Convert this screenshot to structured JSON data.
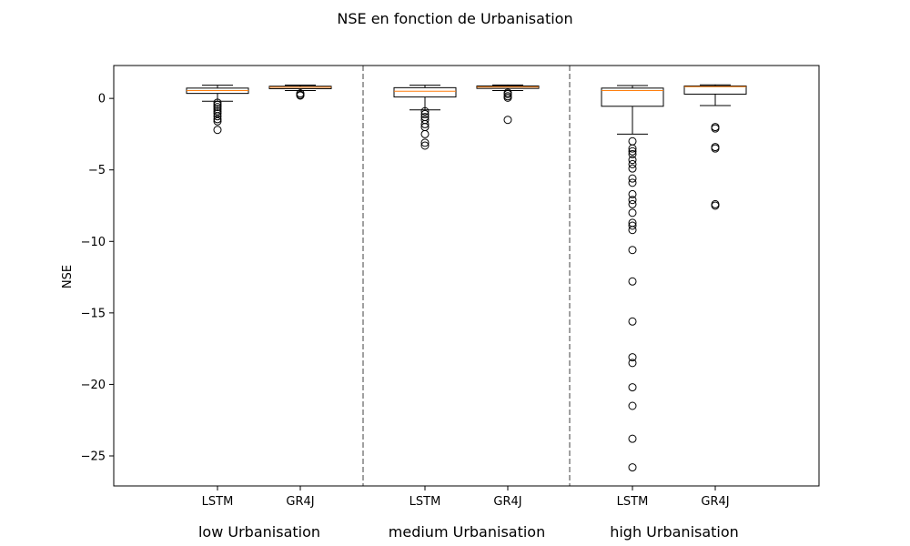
{
  "chart_data": {
    "type": "box",
    "title": "NSE en fonction de Urbanisation",
    "ylabel": "NSE",
    "xlabel": "",
    "ylim": [
      -27.1,
      2.3
    ],
    "yticks": [
      0,
      -5,
      -10,
      -15,
      -20,
      -25
    ],
    "yticklabels": [
      "0",
      "−5",
      "−10",
      "−15",
      "−20",
      "−25"
    ],
    "grid": false,
    "legend": "none",
    "groups": [
      {
        "label": "low Urbanisation",
        "boxes": [
          {
            "label": "LSTM",
            "whisker_low": -0.2,
            "q1": 0.35,
            "median": 0.55,
            "q3": 0.72,
            "whisker_high": 0.92,
            "fliers": [
              -0.3,
              -0.45,
              -0.6,
              -0.75,
              -0.9,
              -1.05,
              -1.25,
              -1.45,
              -1.6,
              -2.2
            ]
          },
          {
            "label": "GR4J",
            "whisker_low": 0.55,
            "q1": 0.68,
            "median": 0.78,
            "q3": 0.85,
            "whisker_high": 0.93,
            "fliers": [
              0.35,
              0.25,
              0.2
            ]
          }
        ]
      },
      {
        "label": "medium Urbanisation",
        "boxes": [
          {
            "label": "LSTM",
            "whisker_low": -0.8,
            "q1": 0.1,
            "median": 0.5,
            "q3": 0.75,
            "whisker_high": 0.92,
            "fliers": [
              -0.9,
              -1.1,
              -1.3,
              -1.5,
              -1.8,
              -2.0,
              -2.5,
              -3.1,
              -3.3
            ]
          },
          {
            "label": "GR4J",
            "whisker_low": 0.55,
            "q1": 0.7,
            "median": 0.8,
            "q3": 0.87,
            "whisker_high": 0.94,
            "fliers": [
              0.4,
              0.3,
              0.15,
              0.05,
              -1.5
            ]
          }
        ]
      },
      {
        "label": "high Urbanisation",
        "boxes": [
          {
            "label": "LSTM",
            "whisker_low": -2.5,
            "q1": -0.55,
            "median": 0.55,
            "q3": 0.72,
            "whisker_high": 0.9,
            "fliers": [
              -3.0,
              -3.5,
              -3.7,
              -3.9,
              -4.3,
              -4.6,
              -4.9,
              -5.6,
              -5.9,
              -6.7,
              -7.1,
              -7.4,
              -8.0,
              -8.7,
              -8.9,
              -9.2,
              -10.6,
              -12.8,
              -15.6,
              -18.1,
              -18.5,
              -20.2,
              -21.5,
              -23.8,
              -25.8
            ]
          },
          {
            "label": "GR4J",
            "whisker_low": -0.5,
            "q1": 0.3,
            "median": 0.82,
            "q3": 0.87,
            "whisker_high": 0.95,
            "fliers": [
              -2.0,
              -2.1,
              -3.4,
              -3.5,
              -7.4,
              -7.5
            ]
          }
        ]
      }
    ],
    "colors": {
      "box_edge": "#000000",
      "median": "#ff7f0e",
      "separator": "#808080",
      "flier_edge": "#000000"
    }
  }
}
